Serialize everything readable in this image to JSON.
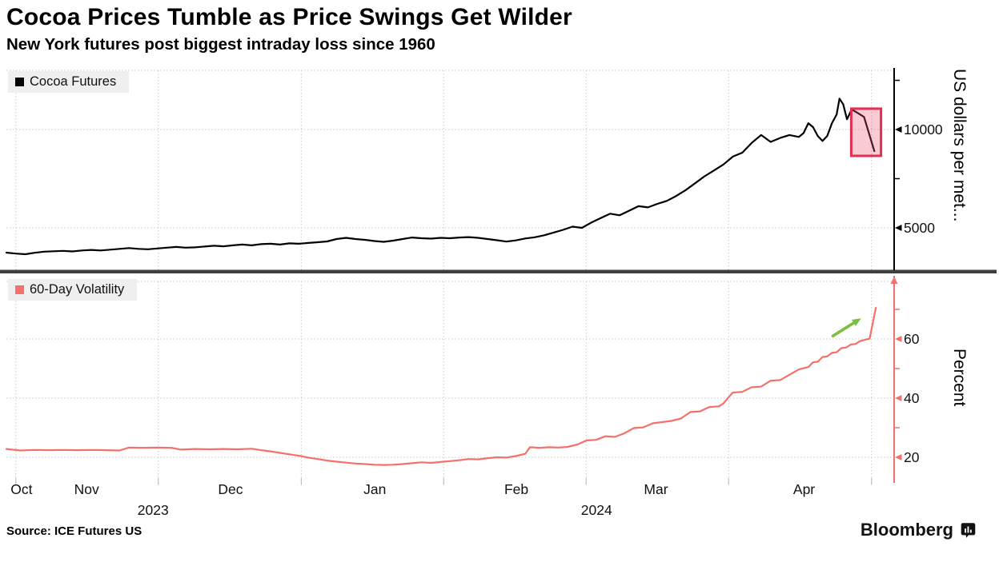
{
  "header": {
    "title": "Cocoa Prices Tumble as Price Swings Get Wilder",
    "subtitle": "New York futures post biggest intraday loss since 1960"
  },
  "footer": {
    "source": "Source: ICE Futures US",
    "brand": "Bloomberg",
    "brand_icon": "bar-chart-bubble-icon"
  },
  "colors": {
    "price_line": "#000000",
    "volatility_line": "#f4706a",
    "volatility_axis": "#f4706a",
    "highlight_border": "#e62e52",
    "highlight_fill": "rgba(240,82,110,0.30)",
    "arrow_green": "#7cc043",
    "separator": "#3f3f3f",
    "grid": "#c9c9c9",
    "tick_text": "#111111",
    "legend_bg": "#efefef"
  },
  "x_axis": {
    "months": [
      {
        "label": "Oct",
        "day": 3.2
      },
      {
        "label": "Nov",
        "day": 17.0
      },
      {
        "label": "Dec",
        "day": 47.5
      },
      {
        "label": "Jan",
        "day": 78.1
      },
      {
        "label": "Feb",
        "day": 108.1
      },
      {
        "label": "Mar",
        "day": 137.7
      },
      {
        "label": "Apr",
        "day": 169.1
      }
    ],
    "years": [
      {
        "label": "2023",
        "day": 31.1
      },
      {
        "label": "2024",
        "day": 125.1
      }
    ],
    "grid_days": [
      2.0,
      32.2,
      62.5,
      92.7,
      122.9,
      153.1,
      183.4
    ],
    "range_note": "mid-Oct 2023 to mid-Apr 2024, day 0 = Oct 15 2023, day 187 = Apr 19 2024"
  },
  "chart_data": [
    {
      "type": "line",
      "title": "Cocoa Futures",
      "ylabel": "US dollars per met...",
      "yticks": [
        {
          "v": 5000,
          "label": "5000"
        },
        {
          "v": 10000,
          "label": "10000"
        }
      ],
      "minor_yticks": [
        7500,
        12500
      ],
      "ylim": [
        2850,
        13050
      ],
      "grid": true,
      "legend_position": "top-left",
      "points": [
        [
          0,
          3740
        ],
        [
          2,
          3690
        ],
        [
          4,
          3660
        ],
        [
          6,
          3730
        ],
        [
          8,
          3790
        ],
        [
          10,
          3810
        ],
        [
          12,
          3830
        ],
        [
          14,
          3800
        ],
        [
          16,
          3850
        ],
        [
          18,
          3880
        ],
        [
          20,
          3850
        ],
        [
          22,
          3890
        ],
        [
          24,
          3930
        ],
        [
          26,
          3970
        ],
        [
          28,
          3930
        ],
        [
          30,
          3910
        ],
        [
          32,
          3950
        ],
        [
          34,
          3990
        ],
        [
          36,
          4030
        ],
        [
          38,
          3990
        ],
        [
          40,
          4010
        ],
        [
          42,
          4050
        ],
        [
          44,
          4090
        ],
        [
          46,
          4060
        ],
        [
          48,
          4110
        ],
        [
          50,
          4150
        ],
        [
          52,
          4110
        ],
        [
          54,
          4170
        ],
        [
          56,
          4190
        ],
        [
          58,
          4150
        ],
        [
          60,
          4210
        ],
        [
          62,
          4190
        ],
        [
          64,
          4230
        ],
        [
          66,
          4270
        ],
        [
          68,
          4310
        ],
        [
          70,
          4430
        ],
        [
          72,
          4490
        ],
        [
          74,
          4430
        ],
        [
          76,
          4390
        ],
        [
          78,
          4330
        ],
        [
          80,
          4290
        ],
        [
          82,
          4350
        ],
        [
          84,
          4430
        ],
        [
          86,
          4510
        ],
        [
          88,
          4470
        ],
        [
          90,
          4450
        ],
        [
          92,
          4490
        ],
        [
          94,
          4470
        ],
        [
          96,
          4510
        ],
        [
          98,
          4530
        ],
        [
          100,
          4490
        ],
        [
          102,
          4430
        ],
        [
          104,
          4370
        ],
        [
          106,
          4300
        ],
        [
          108,
          4360
        ],
        [
          110,
          4460
        ],
        [
          112,
          4520
        ],
        [
          114,
          4620
        ],
        [
          116,
          4760
        ],
        [
          118,
          4900
        ],
        [
          120,
          5060
        ],
        [
          122,
          5000
        ],
        [
          124,
          5270
        ],
        [
          126,
          5500
        ],
        [
          128,
          5720
        ],
        [
          130,
          5640
        ],
        [
          132,
          5870
        ],
        [
          134,
          6100
        ],
        [
          136,
          6040
        ],
        [
          138,
          6220
        ],
        [
          140,
          6370
        ],
        [
          142,
          6620
        ],
        [
          144,
          6920
        ],
        [
          146,
          7270
        ],
        [
          148,
          7620
        ],
        [
          150,
          7920
        ],
        [
          152,
          8220
        ],
        [
          154,
          8620
        ],
        [
          156,
          8820
        ],
        [
          158,
          9320
        ],
        [
          160,
          9720
        ],
        [
          162,
          9370
        ],
        [
          164,
          9570
        ],
        [
          166,
          9720
        ],
        [
          168,
          9620
        ],
        [
          169,
          9820
        ],
        [
          170,
          10320
        ],
        [
          171,
          10120
        ],
        [
          172,
          9670
        ],
        [
          173,
          9420
        ],
        [
          174,
          9670
        ],
        [
          175,
          10320
        ],
        [
          176,
          10770
        ],
        [
          176.6,
          11570
        ],
        [
          177.4,
          11280
        ],
        [
          178.2,
          10520
        ],
        [
          179.2,
          11020
        ],
        [
          180.6,
          10820
        ],
        [
          181.8,
          10640
        ],
        [
          184,
          8900
        ]
      ],
      "annotation": {
        "type": "highlight-box",
        "day_start": 179.1,
        "day_end": 185.4,
        "value_low": 8660,
        "value_high": 11060
      }
    },
    {
      "type": "line",
      "title": "60-Day Volatility",
      "ylabel": "Percent",
      "yticks": [
        {
          "v": 20,
          "label": "20"
        },
        {
          "v": 40,
          "label": "40"
        },
        {
          "v": 60,
          "label": "60"
        }
      ],
      "minor_yticks": [
        30,
        50,
        70
      ],
      "ylim": [
        12,
        80.5
      ],
      "grid": true,
      "legend_position": "top-left",
      "points": [
        [
          0,
          22.8
        ],
        [
          3,
          22.3
        ],
        [
          6,
          22.5
        ],
        [
          9,
          22.4
        ],
        [
          12,
          22.5
        ],
        [
          15,
          22.4
        ],
        [
          18,
          22.5
        ],
        [
          21,
          22.4
        ],
        [
          24,
          22.3
        ],
        [
          26,
          23.3
        ],
        [
          29,
          23.2
        ],
        [
          32,
          23.3
        ],
        [
          35,
          23.2
        ],
        [
          37,
          22.6
        ],
        [
          40,
          22.8
        ],
        [
          43,
          22.7
        ],
        [
          46,
          22.8
        ],
        [
          49,
          22.7
        ],
        [
          52,
          22.9
        ],
        [
          54,
          22.4
        ],
        [
          56,
          22.0
        ],
        [
          58,
          21.5
        ],
        [
          60,
          21.0
        ],
        [
          62,
          20.5
        ],
        [
          64,
          19.9
        ],
        [
          66,
          19.4
        ],
        [
          68,
          18.9
        ],
        [
          70,
          18.5
        ],
        [
          72,
          18.2
        ],
        [
          74,
          17.9
        ],
        [
          76,
          17.7
        ],
        [
          78,
          17.5
        ],
        [
          80,
          17.4
        ],
        [
          82,
          17.5
        ],
        [
          84,
          17.7
        ],
        [
          86,
          18.0
        ],
        [
          88,
          18.3
        ],
        [
          90,
          18.1
        ],
        [
          92,
          18.4
        ],
        [
          94,
          18.7
        ],
        [
          96,
          19.0
        ],
        [
          98,
          19.4
        ],
        [
          100,
          19.3
        ],
        [
          102,
          19.7
        ],
        [
          104,
          20.0
        ],
        [
          106,
          19.9
        ],
        [
          108,
          20.4
        ],
        [
          110,
          21.2
        ],
        [
          111,
          23.4
        ],
        [
          113,
          23.2
        ],
        [
          115,
          23.4
        ],
        [
          117,
          23.3
        ],
        [
          119,
          23.5
        ],
        [
          121,
          24.3
        ],
        [
          123,
          25.7
        ],
        [
          125,
          25.9
        ],
        [
          127,
          27.1
        ],
        [
          129,
          26.9
        ],
        [
          131,
          28.1
        ],
        [
          133,
          29.9
        ],
        [
          135,
          30.1
        ],
        [
          137,
          31.5
        ],
        [
          139,
          31.9
        ],
        [
          141,
          32.3
        ],
        [
          143,
          33.1
        ],
        [
          145,
          35.3
        ],
        [
          147,
          35.5
        ],
        [
          149,
          37.0
        ],
        [
          151,
          37.2
        ],
        [
          152,
          38.2
        ],
        [
          153,
          40.1
        ],
        [
          154,
          41.9
        ],
        [
          156,
          42.1
        ],
        [
          158,
          43.7
        ],
        [
          160,
          43.9
        ],
        [
          162,
          45.9
        ],
        [
          164,
          46.1
        ],
        [
          166,
          47.9
        ],
        [
          168,
          49.7
        ],
        [
          169,
          50.1
        ],
        [
          170,
          50.5
        ],
        [
          171,
          52.1
        ],
        [
          172,
          52.3
        ],
        [
          173,
          53.9
        ],
        [
          174,
          54.1
        ],
        [
          175,
          55.3
        ],
        [
          176,
          55.5
        ],
        [
          177,
          56.9
        ],
        [
          178,
          57.1
        ],
        [
          179,
          58.1
        ],
        [
          180,
          58.3
        ],
        [
          181,
          59.3
        ],
        [
          182,
          59.7
        ],
        [
          183,
          60.1
        ],
        [
          184.3,
          70.5
        ]
      ],
      "annotation": {
        "type": "arrow",
        "tail_day": 175.2,
        "tail_value": 61.0,
        "head_day": 181.2,
        "head_value": 67.0
      }
    }
  ]
}
